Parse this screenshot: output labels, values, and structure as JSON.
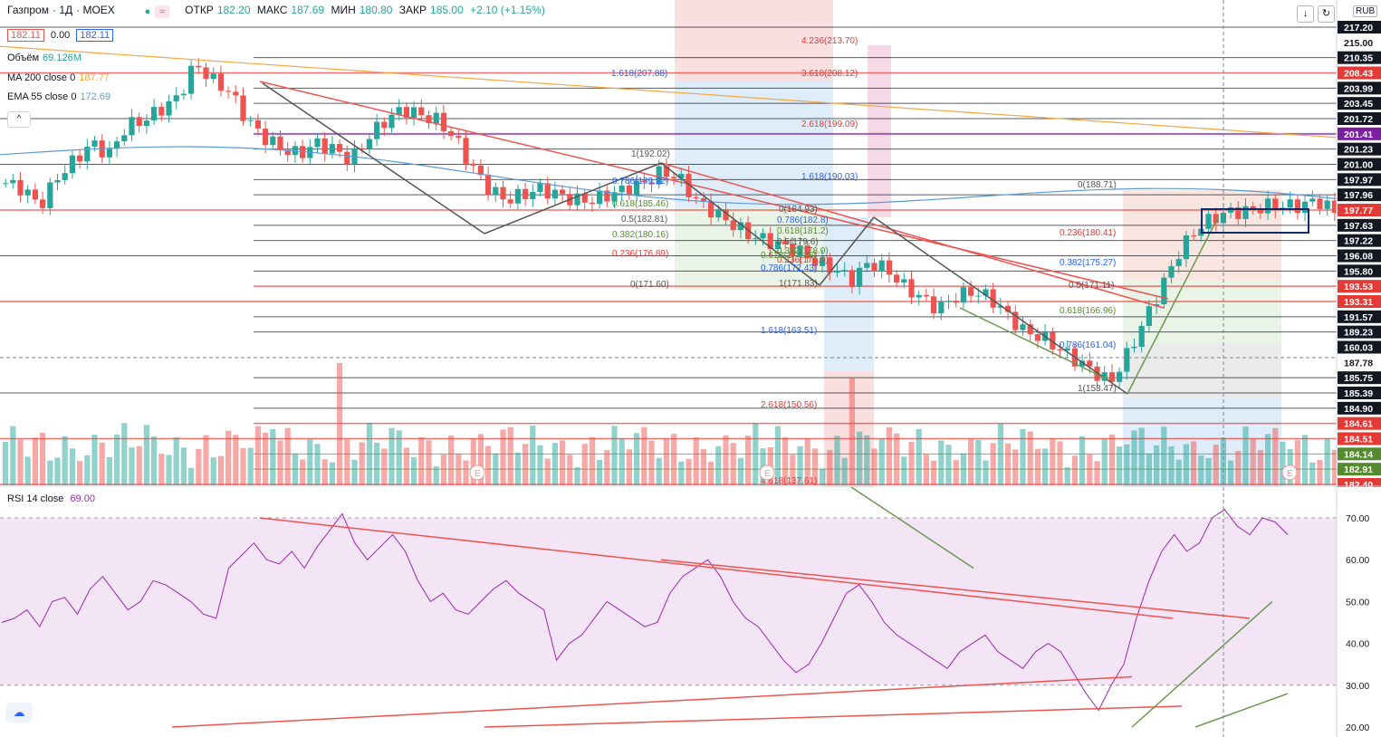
{
  "header": {
    "symbol": "Газпром",
    "interval": "1Д",
    "exchange": "MOEX",
    "ohlc": {
      "open_label": "ОТКР",
      "open": "182.20",
      "high_label": "МАКС",
      "high": "187.69",
      "low_label": "МИН",
      "low": "180.80",
      "close_label": "ЗАКР",
      "close": "185.00",
      "change": "+2.10 (+1.15%)"
    },
    "bid": "182.11",
    "spread": "0.00",
    "ask": "182.11",
    "currency": "RUB"
  },
  "indicators": {
    "volume_label": "Объём",
    "volume_value": "69.126M",
    "ma_label": "MA 200 close 0",
    "ma_value": "187.77",
    "ema_label": "EMA 55 close 0",
    "ema_value": "172.69",
    "rsi_label": "RSI 14 close",
    "rsi_value": "69.00"
  },
  "colors": {
    "up": "#26a69a",
    "down": "#ef5350",
    "ema": "#5b9bd5",
    "ma": "#f5a742",
    "rsi": "#9c27b0",
    "rsi_band": "#f3e5f5",
    "trend_red": "#ef5350",
    "trend_green": "#6a994e"
  },
  "price_axis_labels": [
    {
      "text": "217.20",
      "style": "black"
    },
    {
      "text": "215.00",
      "style": "plain"
    },
    {
      "text": "210.35",
      "style": "black"
    },
    {
      "text": "208.43",
      "style": "red"
    },
    {
      "text": "203.99",
      "style": "black"
    },
    {
      "text": "203.45",
      "style": "black"
    },
    {
      "text": "201.72",
      "style": "black"
    },
    {
      "text": "201.41",
      "style": "purple"
    },
    {
      "text": "201.23",
      "style": "black"
    },
    {
      "text": "201.00",
      "style": "black"
    },
    {
      "text": "197.97",
      "style": "black"
    },
    {
      "text": "197.96",
      "style": "black"
    },
    {
      "text": "197.77",
      "style": "red"
    },
    {
      "text": "197.63",
      "style": "black"
    },
    {
      "text": "197.22",
      "style": "black"
    },
    {
      "text": "196.08",
      "style": "black"
    },
    {
      "text": "195.80",
      "style": "black"
    },
    {
      "text": "193.53",
      "style": "red"
    },
    {
      "text": "193.31",
      "style": "red"
    },
    {
      "text": "191.57",
      "style": "black"
    },
    {
      "text": "189.23",
      "style": "black"
    },
    {
      "text": "160.03",
      "style": "crosshair"
    },
    {
      "text": "187.78",
      "style": "plain"
    },
    {
      "text": "185.75",
      "style": "black"
    },
    {
      "text": "185.39",
      "style": "black"
    },
    {
      "text": "184.90",
      "style": "black"
    },
    {
      "text": "184.61",
      "style": "red"
    },
    {
      "text": "184.51",
      "style": "red"
    },
    {
      "text": "184.14",
      "style": "green"
    },
    {
      "text": "182.91",
      "style": "green"
    },
    {
      "text": "182.40",
      "style": "red"
    }
  ],
  "rsi_axis_labels": [
    "70.00",
    "60.00",
    "50.00",
    "40.00",
    "30.00",
    "20.00"
  ],
  "fib_labels": [
    "4.236(213.70)",
    "3.618(208.12)",
    "1.618(207.88)",
    "2.618(199.09)",
    "1.618(190.03)",
    "1(192.02)",
    "0.786(189.22)",
    "0.618(185.46)",
    "0.5(182.81)",
    "0.382(180.16)",
    "0.236(176.89)",
    "0(171.60)",
    "0(188.71)",
    "0.236(180.41)",
    "0.382(175.27)",
    "0.5(171.11)",
    "0.618(166.96)",
    "0.786(161.04)",
    "1(153.47)",
    "1.618(163.51)",
    "2.618(150.56)",
    "4.618(137.61)",
    "0(184.93)",
    "0.786(182.8)",
    "0.618(181.2)",
    "0.5(179.6)",
    "0.382(178.0)",
    "0.236(176.9)",
    "0.618(174.46)",
    "0.786(172.43)",
    "1(171.83)"
  ],
  "event_markers": [
    "E",
    "E",
    "E"
  ],
  "chart_data": [
    {
      "type": "candlestick",
      "title": "Газпром · 1Д · MOEX",
      "y_axis_range": [
        137,
        218
      ],
      "y_axis_ticks": [
        217.2,
        215.0,
        210.35,
        208.43,
        203.99,
        203.45,
        201.72,
        201.41,
        201.23,
        201.0,
        197.97,
        197.96,
        197.77,
        197.63,
        197.22,
        196.08,
        195.8,
        193.53,
        193.31,
        191.57,
        189.23,
        187.78,
        185.75,
        185.39,
        184.9,
        184.61,
        184.51,
        184.14,
        182.91,
        182.4
      ],
      "last": {
        "open": 182.2,
        "high": 187.69,
        "low": 180.8,
        "close": 185.0,
        "change": 2.1,
        "change_pct": 1.15
      },
      "close_series_approx": [
        190,
        189,
        186,
        191,
        194,
        197,
        195,
        200,
        201,
        203,
        205,
        211,
        208,
        206,
        201,
        198,
        196,
        195,
        197,
        196,
        194,
        198,
        201,
        203,
        202,
        201,
        198,
        193,
        189,
        187,
        188,
        189,
        188,
        187,
        187,
        188,
        189,
        190,
        192,
        191,
        187,
        185,
        183,
        181,
        180,
        179,
        178,
        176,
        175,
        173,
        176,
        175,
        172,
        170,
        168,
        170,
        171,
        170,
        167,
        164,
        163,
        161,
        159,
        157,
        155,
        160,
        166,
        172,
        178,
        182,
        184,
        185,
        185,
        186,
        186,
        186,
        187,
        185
      ],
      "series": [
        {
          "name": "MA 200 close 0",
          "last": 187.77
        },
        {
          "name": "EMA 55 close 0",
          "last": 172.69
        }
      ]
    },
    {
      "type": "bar",
      "title": "Объём",
      "last": "69.126M"
    },
    {
      "type": "line",
      "title": "RSI 14 close",
      "y_axis_range": [
        20,
        75
      ],
      "levels": [
        70,
        30
      ],
      "last": 69.0,
      "values_approx": [
        45,
        46,
        48,
        44,
        50,
        51,
        47,
        53,
        56,
        52,
        48,
        50,
        55,
        54,
        52,
        50,
        47,
        46,
        58,
        61,
        64,
        60,
        59,
        62,
        58,
        63,
        67,
        71,
        64,
        60,
        63,
        66,
        62,
        55,
        50,
        52,
        48,
        47,
        50,
        53,
        55,
        52,
        50,
        48,
        36,
        40,
        42,
        46,
        50,
        48,
        46,
        44,
        45,
        52,
        56,
        58,
        60,
        56,
        50,
        46,
        44,
        40,
        36,
        33,
        35,
        40,
        46,
        52,
        54,
        50,
        45,
        42,
        40,
        38,
        36,
        34,
        38,
        40,
        42,
        38,
        36,
        34,
        38,
        40,
        38,
        33,
        28,
        24,
        30,
        35,
        46,
        55,
        62,
        66,
        62,
        64,
        70,
        72,
        68,
        66,
        70,
        69,
        66
      ]
    }
  ]
}
